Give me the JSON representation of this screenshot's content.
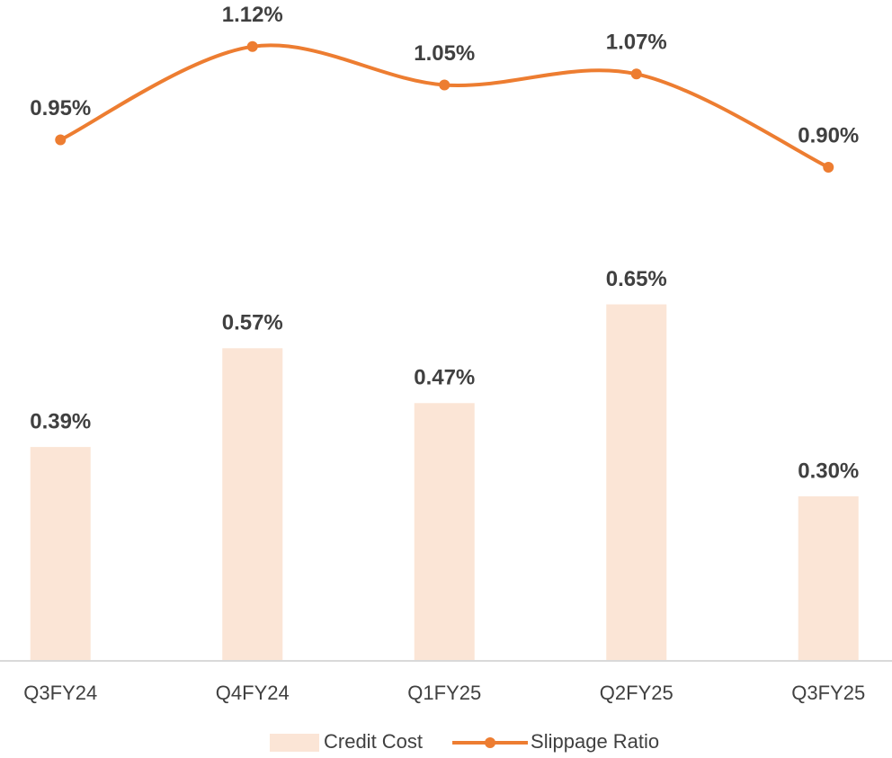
{
  "chart_data": {
    "type": "combo",
    "categories": [
      "Q3FY24",
      "Q4FY24",
      "Q1FY25",
      "Q2FY25",
      "Q3FY25"
    ],
    "series": [
      {
        "name": "Credit Cost",
        "type": "bar",
        "color": "#fbe5d6",
        "values": [
          0.39,
          0.57,
          0.47,
          0.65,
          0.3
        ],
        "value_labels": [
          "0.39%",
          "0.57%",
          "0.47%",
          "0.65%",
          "0.30%"
        ]
      },
      {
        "name": "Slippage Ratio",
        "type": "line",
        "color": "#ed7d31",
        "values": [
          0.95,
          1.12,
          1.05,
          1.07,
          0.9
        ],
        "value_labels": [
          "0.95%",
          "1.12%",
          "1.05%",
          "1.07%",
          "0.90%"
        ]
      }
    ],
    "ylim": [
      0,
      1.2
    ],
    "legend": "bottom"
  }
}
